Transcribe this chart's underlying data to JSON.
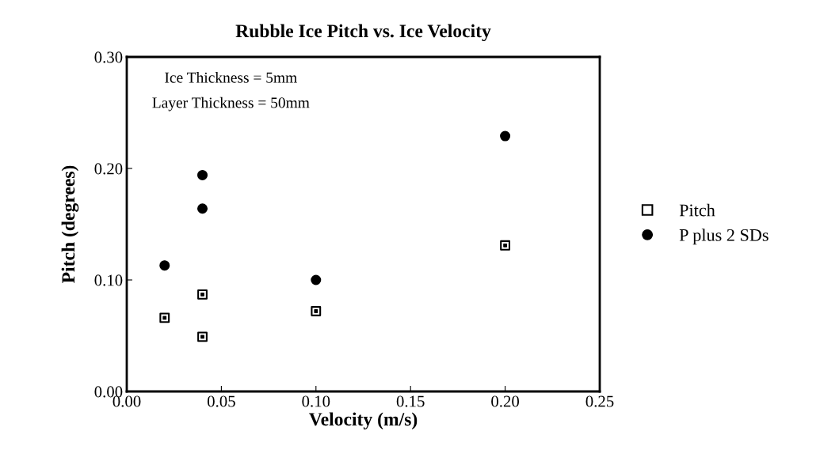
{
  "chart_data": {
    "type": "scatter",
    "title": "Rubble Ice Pitch vs. Ice Velocity",
    "xlabel": "Velocity (m/s)",
    "ylabel": "Pitch (degrees)",
    "annotations": [
      "Ice Thickness = 5mm",
      "Layer Thickness = 50mm"
    ],
    "series": [
      {
        "name": "Pitch",
        "color": "#000000",
        "marker": "square",
        "x": [
          0.02,
          0.04,
          0.04,
          0.1,
          0.2
        ],
        "values": [
          0.066,
          0.087,
          0.049,
          0.072,
          0.131
        ]
      },
      {
        "name": "P plus 2 SDs",
        "color": "#000000",
        "marker": "circle",
        "x": [
          0.02,
          0.04,
          0.04,
          0.1,
          0.2
        ],
        "values": [
          0.113,
          0.194,
          0.164,
          0.1,
          0.229
        ]
      }
    ],
    "xlim": [
      0,
      0.25
    ],
    "ylim": [
      0,
      0.3
    ],
    "xticks": [
      {
        "value": 0,
        "label": "0.00"
      },
      {
        "value": 0.05,
        "label": "0.05"
      },
      {
        "value": 0.1,
        "label": "0.10"
      },
      {
        "value": 0.15,
        "label": "0.15"
      },
      {
        "value": 0.2,
        "label": "0.20"
      },
      {
        "value": 0.25,
        "label": "0.25"
      }
    ],
    "yticks": [
      {
        "value": 0,
        "label": "0.00"
      },
      {
        "value": 0.1,
        "label": "0.10"
      },
      {
        "value": 0.2,
        "label": "0.20"
      },
      {
        "value": 0.3,
        "label": "0.30"
      }
    ],
    "grid": false,
    "legend": "right"
  }
}
